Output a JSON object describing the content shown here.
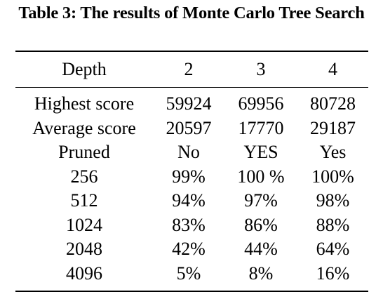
{
  "caption": "Table 3: The results of Monte Carlo Tree Search",
  "table": {
    "header": [
      "Depth",
      "2",
      "3",
      "4"
    ],
    "rows": [
      [
        "Highest score",
        "59924",
        "69956",
        "80728"
      ],
      [
        "Average score",
        "20597",
        "17770",
        "29187"
      ],
      [
        "Pruned",
        "No",
        "YES",
        "Yes"
      ],
      [
        "256",
        "99%",
        "100 %",
        "100%"
      ],
      [
        "512",
        "94%",
        "97%",
        "98%"
      ],
      [
        "1024",
        "83%",
        "86%",
        "88%"
      ],
      [
        "2048",
        "42%",
        "44%",
        "64%"
      ],
      [
        "4096",
        "5%",
        "8%",
        "16%"
      ]
    ]
  }
}
